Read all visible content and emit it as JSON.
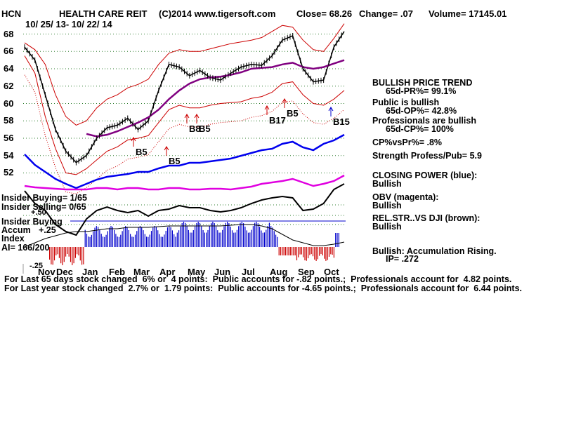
{
  "header": {
    "symbol": "HCN",
    "name": "HEALTH CARE REIT",
    "copyright": "(C)2014 www.tigersoft.com",
    "close": "Close= 68.26",
    "change": "Change= .07",
    "volume": "Volume= 17145.01",
    "date_range": "10/ 25/ 13- 10/ 22/ 14"
  },
  "indicators": {
    "trend_title": "BULLISH PRICE TREND",
    "pr": "65d-PR%= 99.1%",
    "public_title": "Public is bullish",
    "op": "65d-OP%= 42.8%",
    "prof_title": "Professionals are bullish",
    "cp": "65d-CP%= 100%",
    "cpvspr": "CP%vsPr%= .8%",
    "strength": "Strength Profess/Pub= 5.9",
    "closing_power_title": "CLOSING POWER (blue):",
    "closing_power_value": "Bullish",
    "obv_title": "OBV (magenta):",
    "obv_value": "Bullish",
    "relstr_title": "REL.STR..VS DJI (brown):",
    "relstr_value": "Bullish",
    "accum_title": "Bullish: Accumulation Rising.",
    "ip": "IP= .272"
  },
  "insider": {
    "buying": "Insider Buying= 1/65",
    "selling": "Insider Selling= 0/65",
    "buying_label": "Insider Buying",
    "accum": "Accum",
    "plus": "+.25",
    "index": "Index",
    "ai": "AI= 166/200",
    "minus": "-.25",
    "plus50": "+.50"
  },
  "footer": {
    "line1": "For Last 65 days stock changed  6% or  4 points:  Public accounts for -.82 points.;  Professionals account for  4.82 points.",
    "line2": "For Last year stock changed  2.7% or  1.79 points:  Public accounts for -4.65 points.;  Professionals account for  6.44 points."
  },
  "chart_data": {
    "type": "line",
    "title": "HEALTH CARE REIT",
    "y_ticks": [
      52,
      54,
      56,
      58,
      60,
      62,
      64,
      66,
      68
    ],
    "ylim": [
      50.5,
      69.5
    ],
    "x_labels": [
      "Nov",
      "Dec",
      "Jan",
      "Feb",
      "Mar",
      "Apr",
      "May",
      "Jun",
      "Jul",
      "Aug",
      "Sep",
      "Oct"
    ],
    "grid": true,
    "series": [
      {
        "name": "Price",
        "color": "#000000",
        "values": [
          66.5,
          65.0,
          61.0,
          57.0,
          54.5,
          53.2,
          54.0,
          56.0,
          57.2,
          57.5,
          58.3,
          57.0,
          58.0,
          61.5,
          64.5,
          64.2,
          63.2,
          63.8,
          63.0,
          62.7,
          63.5,
          64.2,
          64.5,
          64.4,
          65.5,
          67.3,
          67.8,
          64.0,
          62.5,
          62.7,
          66.5,
          68.3
        ]
      },
      {
        "name": "Moving Average",
        "color": "#800080",
        "values": [
          null,
          null,
          null,
          null,
          null,
          null,
          56.5,
          56.2,
          56.4,
          56.8,
          57.3,
          57.8,
          58.4,
          59.3,
          60.5,
          61.5,
          62.3,
          62.8,
          63.0,
          63.1,
          63.3,
          63.6,
          64.0,
          64.1,
          64.2,
          64.5,
          64.7,
          64.2,
          64.0,
          64.2,
          64.6,
          65.0
        ]
      },
      {
        "name": "Upper Band",
        "color": "#cc0000",
        "values": [
          67.0,
          66.2,
          64.5,
          61.0,
          58.5,
          57.5,
          58.0,
          59.5,
          60.5,
          61.0,
          61.8,
          62.2,
          62.8,
          64.5,
          65.8,
          66.2,
          66.0,
          66.0,
          66.3,
          66.6,
          66.9,
          67.1,
          67.3,
          67.6,
          68.3,
          69.0,
          68.8,
          67.3,
          66.2,
          66.0,
          67.5,
          69.2
        ]
      },
      {
        "name": "Lower Band",
        "color": "#cc0000",
        "values": [
          65.5,
          63.5,
          58.5,
          54.8,
          52.0,
          51.8,
          52.5,
          53.5,
          54.5,
          55.0,
          55.8,
          56.0,
          56.3,
          57.8,
          59.3,
          59.8,
          59.5,
          59.5,
          59.8,
          60.0,
          60.1,
          60.2,
          60.6,
          60.8,
          61.3,
          62.3,
          62.5,
          61.0,
          60.0,
          59.8,
          60.5,
          61.5
        ]
      }
    ],
    "annotations": [
      "B5",
      "B5",
      "B8",
      "B5",
      "B17",
      "B5",
      "B15"
    ]
  }
}
